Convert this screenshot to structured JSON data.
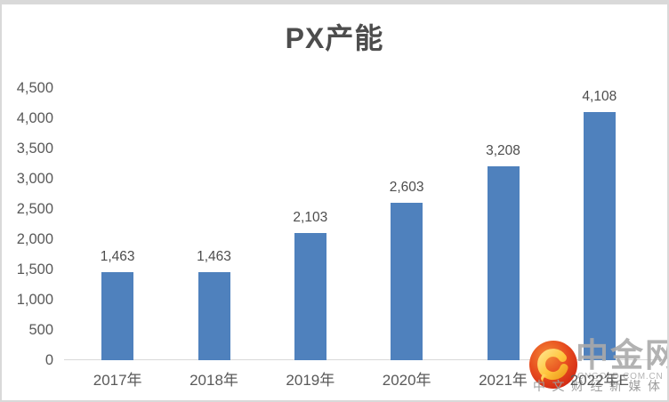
{
  "chart_data": {
    "type": "bar",
    "title": "PX产能",
    "categories": [
      "2017年",
      "2018年",
      "2019年",
      "2020年",
      "2021年",
      "2022年E"
    ],
    "values": [
      1463,
      1463,
      2103,
      2603,
      3208,
      4108
    ],
    "value_labels": [
      "1,463",
      "1,463",
      "2,103",
      "2,603",
      "3,208",
      "4,108"
    ],
    "xlabel": "",
    "ylabel": "",
    "ylim": [
      0,
      4500
    ],
    "ytick_values": [
      0,
      500,
      1000,
      1500,
      2000,
      2500,
      3000,
      3500,
      4000,
      4500
    ],
    "ytick_labels": [
      "0",
      "500",
      "1,000",
      "1,500",
      "2,000",
      "2,500",
      "3,000",
      "3,500",
      "4,000",
      "4,500"
    ],
    "bar_color": "#4f81bd",
    "grid": false,
    "legend": false,
    "label_color": "#4d4d4d",
    "axis_text_color": "#595959",
    "axis_line_color": "#d9d9d9"
  },
  "watermark": {
    "brand": "中金网",
    "domain": "CNGOLD.COM.CN",
    "tagline": "中文财经新媒体",
    "logo_icon": "cngold-swirl-logo",
    "logo_red": "#df3417",
    "logo_gold": "#ffc53d",
    "text_color": "#aaaaaa"
  },
  "frame": {
    "border_color": "#d9d9d9",
    "background": "#ffffff"
  }
}
